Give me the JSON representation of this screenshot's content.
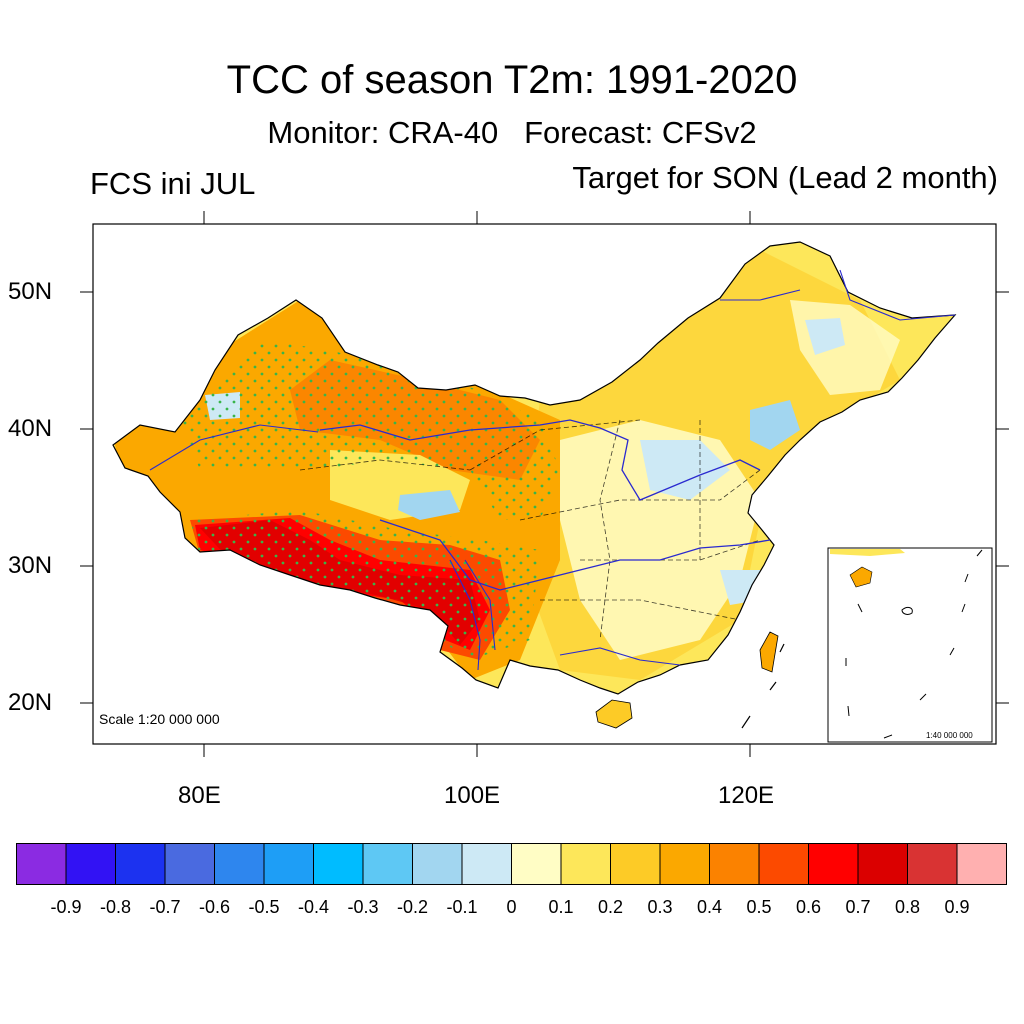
{
  "header": {
    "title": "TCC of season T2m: 1991-2020",
    "subtitle": "Monitor: CRA-40   Forecast: CFSv2",
    "init_label": "FCS ini JUL",
    "target_label": "Target for SON (Lead 2 month)"
  },
  "axes": {
    "lat_labels": [
      "50N",
      "40N",
      "30N",
      "20N"
    ],
    "lon_labels": [
      "80E",
      "100E",
      "120E"
    ]
  },
  "scale": {
    "main": "Scale 1:20 000 000",
    "inset": "1:40 000 000"
  },
  "colorbar": {
    "colors": [
      "#8b2be2",
      "#3212f4",
      "#1c32f0",
      "#4a6ae0",
      "#2e86ee",
      "#1e9ef6",
      "#00bcff",
      "#5ec8f4",
      "#a2d6f0",
      "#cde9f5",
      "#fffdc5",
      "#fde75a",
      "#fdcb26",
      "#fba800",
      "#fb8200",
      "#fc4a00",
      "#ff0000",
      "#db0000",
      "#d93333",
      "#ffb0b0"
    ],
    "labels": [
      "-0.9",
      "-0.8",
      "-0.7",
      "-0.6",
      "-0.5",
      "-0.4",
      "-0.3",
      "-0.2",
      "-0.1",
      "0",
      "0.1",
      "0.2",
      "0.3",
      "0.4",
      "0.5",
      "0.6",
      "0.7",
      "0.8",
      "0.9"
    ]
  }
}
